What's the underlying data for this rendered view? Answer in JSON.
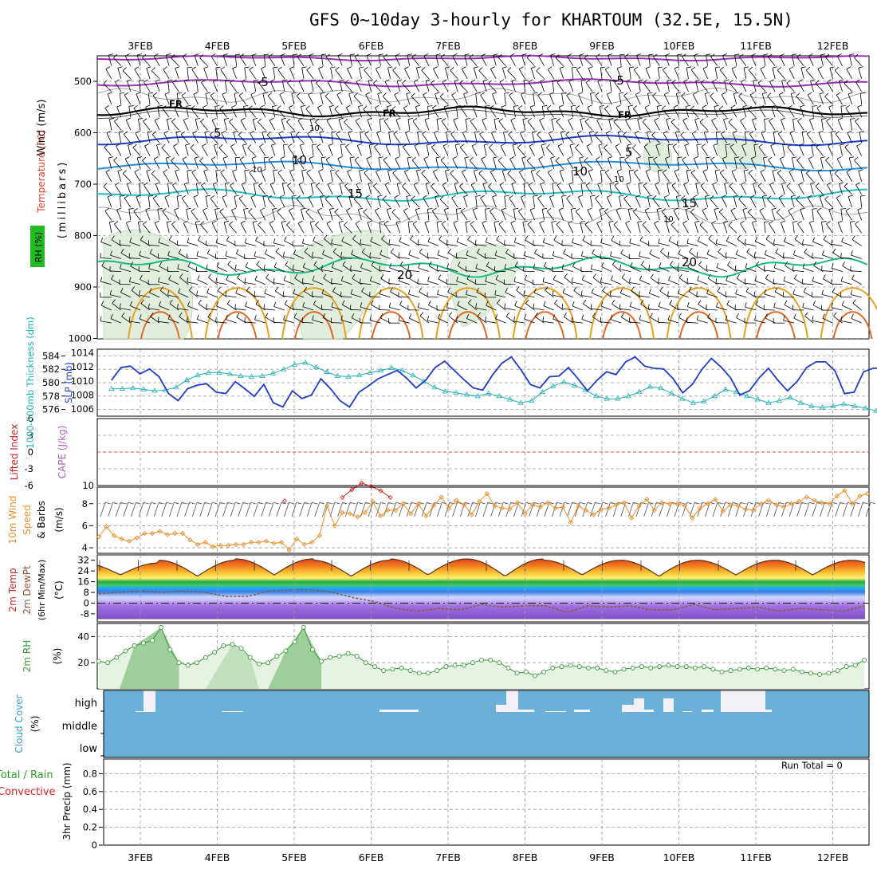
{
  "title": "GFS 0~10day 3-hourly for KHARTOUM (32.5E, 15.5N)",
  "dates": [
    "3FEB",
    "4FEB",
    "5FEB",
    "6FEB",
    "7FEB",
    "8FEB",
    "9FEB",
    "10FEB",
    "11FEB",
    "12FEB"
  ],
  "colors": {
    "wind_label": "#000000",
    "temperature_label": "#e0402a",
    "rh_label_bg": "#22bb22",
    "thickness": "#22b0b0",
    "slp": "#1e3cc8",
    "cape": "#b060c0",
    "lifted_index": "#d02020",
    "wind10": "#e8902a",
    "rh2m": "#3a9a3a",
    "cloud_fill": "#6ab0d8",
    "precip_total": "#2aa02a",
    "precip_convective": "#e02020"
  },
  "panel_labels": {
    "p1_wind": "Wind (m/s)",
    "p1_temperature": "Temperature (°C)",
    "p1_rh": "RH (%)",
    "p1_millibars": "(millibars)",
    "p2_thickness": "1000-500mb Thickness (dm)",
    "p2_slp": "SLP (mb)",
    "p3_cape": "CAPE (J/kg)",
    "p3_lifted": "Lifted Index",
    "p4_line1": "10m Wind",
    "p4_line2": "Speed",
    "p4_line3": "& Barbs",
    "p4_units": "(m/s)",
    "p5_line1": "2m Temp",
    "p5_line2": "2m DewPt",
    "p5_line3": "(6hr Min/Max)",
    "p5_units": "(°C)",
    "p6_label": "2m RH",
    "p6_units": "(%)",
    "p7_label": "Cloud Cover",
    "p7_units": "(%)",
    "p8_total": "Total / Rain",
    "p8_convective": "Convective",
    "p8_label": "3hr Precip (mm)",
    "run_total": "Run Total = 0"
  },
  "pressure_ticks": [
    "500",
    "600",
    "700",
    "800",
    "900",
    "1000"
  ],
  "contour_labels": {
    "freezing": "FR",
    "temps": [
      "-5",
      "-5",
      "5",
      "5",
      "10",
      "10",
      "15",
      "15",
      "20",
      "20"
    ],
    "rh": [
      "10",
      "10",
      "10",
      "10"
    ]
  },
  "thickness_ticks": [
    "584",
    "582",
    "580",
    "578",
    "576"
  ],
  "slp_ticks": [
    "1014",
    "1012",
    "1010",
    "1008",
    "1006"
  ],
  "lifted_ticks": [
    "6",
    "3",
    "0",
    "-3",
    "-6"
  ],
  "cape_ticks": [
    "10"
  ],
  "wind10_ticks": [
    "8",
    "6",
    "4"
  ],
  "temp_ticks": [
    "32",
    "24",
    "16",
    "8",
    "0",
    "-8"
  ],
  "rh_ticks": [
    "40",
    "20"
  ],
  "cloud_levels": [
    "high",
    "middle",
    "low"
  ],
  "precip_ticks": [
    "0.8",
    "0.6",
    "0.4",
    "0.2",
    "0"
  ],
  "chart_data": [
    {
      "type": "line",
      "panel": "1000-500mb Thickness and SLP",
      "x_unit": "hours since 2FEB 00Z (3-hourly)",
      "x_start": 15,
      "x_step": 3,
      "series": [
        {
          "name": "1000-500mb Thickness (dm)",
          "ylim": [
            575,
            585
          ],
          "values": [
            579.1,
            579.1,
            579.2,
            579.0,
            578.8,
            578.9,
            579.3,
            580.4,
            581.1,
            581.5,
            581.5,
            581.3,
            581.0,
            580.9,
            581.0,
            581.4,
            582.0,
            582.7,
            583.0,
            582.3,
            581.6,
            581.0,
            580.9,
            581.1,
            581.5,
            581.8,
            582.2,
            581.8,
            581.1,
            580.2,
            579.3,
            578.7,
            578.5,
            578.2,
            578.0,
            578.4,
            578.0,
            577.5,
            577.0,
            577.3,
            578.6,
            579.5,
            580.1,
            579.6,
            578.9,
            578.0,
            577.6,
            577.6,
            578.0,
            578.6,
            579.4,
            579.2,
            578.4,
            577.6,
            577.0,
            577.2,
            578.0,
            579.0,
            578.6,
            578.0,
            577.5,
            577.0,
            577.3,
            577.8,
            577.0,
            576.5,
            576.3,
            576.5,
            576.8,
            576.5,
            576.2,
            575.8,
            575.4,
            575.4,
            575.3
          ]
        },
        {
          "name": "SLP (mb)",
          "ylim": [
            1005,
            1014.5
          ],
          "values": [
            1010.1,
            1011.9,
            1012.1,
            1011.0,
            1011.7,
            1010.6,
            1008.2,
            1007.2,
            1008.9,
            1009.4,
            1009.6,
            1008.4,
            1008.2,
            1009.9,
            1008.9,
            1007.8,
            1009.5,
            1006.9,
            1006.3,
            1008.6,
            1007.5,
            1008.0,
            1010.3,
            1008.9,
            1007.2,
            1006.3,
            1008.4,
            1009.3,
            1010.3,
            1010.9,
            1011.5,
            1010.4,
            1009.0,
            1010.1,
            1011.9,
            1012.8,
            1011.5,
            1010.2,
            1009.0,
            1008.7,
            1010.8,
            1012.5,
            1013.4,
            1011.6,
            1009.5,
            1009.0,
            1010.6,
            1010.7,
            1011.9,
            1010.3,
            1008.6,
            1010.1,
            1011.3,
            1010.9,
            1012.7,
            1013.4,
            1012.1,
            1011.8,
            1011.7,
            1010.3,
            1008.3,
            1009.5,
            1011.6,
            1013.2,
            1012.0,
            1010.5,
            1008.0,
            1008.6,
            1010.4,
            1011.8,
            1010.1,
            1008.6,
            1009.9,
            1011.9,
            1012.7,
            1012.7,
            1011.4,
            1008.2,
            1008.4,
            1011.3,
            1011.8,
            1011.8,
            1012.0,
            1012.5,
            1013.8
          ]
        }
      ]
    },
    {
      "type": "line",
      "panel": "CAPE and Lifted Index",
      "series": [
        {
          "name": "Lifted Index",
          "ylim": [
            6,
            -6
          ],
          "values_note": "",
          "points": [
            [
              63,
              5.6
            ],
            [
              81,
              5.0
            ],
            [
              84,
              3.6
            ],
            [
              87,
              2.4
            ],
            [
              90,
              3.0
            ],
            [
              93,
              3.8
            ],
            [
              96,
              5.0
            ]
          ]
        }
      ]
    },
    {
      "type": "line",
      "panel": "10m Wind Speed",
      "ylim": [
        3.5,
        9.5
      ],
      "series": [
        {
          "name": "10m Wind Speed (m/s)",
          "values": [
            5.0,
            5.9,
            5.1,
            4.8,
            4.6,
            4.9,
            5.3,
            5.3,
            5.5,
            5.2,
            5.3,
            5.3,
            4.7,
            4.3,
            4.5,
            4.1,
            4.2,
            4.2,
            4.3,
            4.3,
            4.5,
            4.5,
            4.6,
            4.4,
            4.5,
            3.8,
            4.8,
            4.3,
            4.5,
            5.1,
            7.8,
            6.0,
            7.2,
            7.1,
            6.8,
            7.2,
            8.2,
            6.9,
            7.4,
            7.4,
            8.0,
            7.1,
            8.0,
            6.9,
            7.8,
            8.6,
            7.6,
            8.3,
            7.9,
            7.0,
            8.2,
            8.9,
            7.8,
            7.6,
            7.5,
            8.1,
            7.1,
            7.9,
            7.7,
            8.1,
            7.6,
            7.7,
            6.3,
            7.8,
            7.4,
            7.0,
            7.5,
            7.6,
            7.9,
            8.1,
            6.7,
            7.8,
            8.4,
            7.4,
            8.1,
            8.0,
            8.0,
            7.8,
            6.7,
            7.6,
            8.0,
            8.4,
            7.3,
            7.9,
            7.8,
            7.5,
            7.4,
            8.0,
            8.3,
            7.9,
            7.7,
            8.0,
            8.2,
            8.6,
            8.3,
            8.1,
            8.0,
            8.7,
            9.2,
            8.0,
            8.7,
            8.9
          ]
        }
      ]
    },
    {
      "type": "area",
      "panel": "2m Temp and DewPt",
      "ylim": [
        -14,
        36
      ],
      "series": [
        {
          "name": "2m Temp max",
          "values": [
            30,
            32,
            33,
            32,
            33,
            33,
            32,
            32,
            32,
            32
          ]
        },
        {
          "name": "2m Temp min",
          "values": [
            21,
            20,
            21,
            20,
            21,
            20,
            21,
            20,
            21,
            21
          ]
        },
        {
          "name": "2m DewPt",
          "values": [
            7,
            8,
            9,
            8,
            9,
            8,
            5,
            5,
            9,
            10,
            10,
            8,
            4,
            1,
            -4,
            -6,
            -4,
            -5,
            -1,
            -3,
            -2,
            -2,
            -7,
            -2,
            -3,
            -2,
            -5,
            -5,
            -1,
            -5,
            -4,
            -3,
            -6,
            -4,
            -5,
            -6,
            -2
          ]
        }
      ]
    },
    {
      "type": "line",
      "panel": "2m RH",
      "ylim": [
        0,
        50
      ],
      "series": [
        {
          "name": "2m RH (%)",
          "values": [
            21,
            20,
            24,
            29,
            33,
            35,
            37,
            47,
            30,
            20,
            18,
            20,
            24,
            28,
            33,
            34,
            31,
            24,
            19,
            20,
            25,
            29,
            36,
            47,
            30,
            21,
            24,
            25,
            27,
            25,
            20,
            17,
            14,
            15,
            16,
            14,
            12,
            12,
            14,
            17,
            18,
            18,
            20,
            22,
            22,
            20,
            16,
            12,
            13,
            10,
            13,
            16,
            17,
            18,
            17,
            16,
            16,
            14,
            13,
            15,
            16,
            17,
            16,
            17,
            18,
            17,
            17,
            16,
            17,
            15,
            13,
            14,
            15,
            16,
            15,
            16,
            15,
            14,
            15,
            13,
            12,
            11,
            12,
            14,
            17,
            18,
            22
          ]
        }
      ]
    },
    {
      "type": "bar",
      "panel": "Cloud Cover",
      "categories": [
        "low",
        "middle",
        "high"
      ],
      "note": "high cloud cover only, brief spikes"
    },
    {
      "type": "bar",
      "panel": "3hr Precip",
      "ylim": [
        0,
        1
      ],
      "values": [],
      "run_total": 0
    }
  ]
}
